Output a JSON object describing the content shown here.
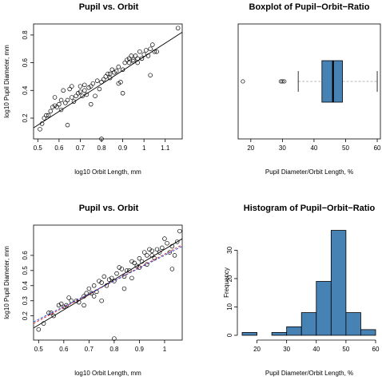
{
  "colors": {
    "box_fill": "#4682b4",
    "bar_fill": "#4682b4",
    "median": "#000000",
    "whisker": "#a0a0a0",
    "fit_red": "#d62728",
    "fit_blue": "#1f3fd6"
  },
  "chart_data": [
    {
      "type": "scatter",
      "title": "Pupil vs. Orbit",
      "xlabel": "log10 Orbit Length, mm",
      "ylabel": "log10 Pupil Diameter, mm",
      "xlim": [
        0.48,
        1.18
      ],
      "ylim": [
        0.05,
        0.88
      ],
      "xticks": [
        0.5,
        0.6,
        0.7,
        0.8,
        0.9,
        1.0,
        1.1
      ],
      "yticks": [
        0.2,
        0.4,
        0.6,
        0.8
      ],
      "fit_lines": [
        {
          "style": "solid",
          "color": "#000000",
          "x": [
            0.48,
            1.18
          ],
          "y": [
            0.13,
            0.82
          ]
        }
      ],
      "x": [
        0.51,
        0.52,
        0.53,
        0.54,
        0.55,
        0.56,
        0.57,
        0.58,
        0.59,
        0.6,
        0.61,
        0.62,
        0.63,
        0.64,
        0.65,
        0.66,
        0.67,
        0.68,
        0.69,
        0.7,
        0.71,
        0.72,
        0.73,
        0.74,
        0.75,
        0.76,
        0.77,
        0.78,
        0.79,
        0.8,
        0.81,
        0.82,
        0.83,
        0.84,
        0.85,
        0.86,
        0.87,
        0.88,
        0.89,
        0.9,
        0.91,
        0.92,
        0.93,
        0.94,
        0.95,
        0.96,
        0.97,
        0.98,
        0.99,
        1.0,
        1.01,
        1.02,
        1.03,
        1.04,
        1.05,
        1.06,
        0.8,
        0.64,
        0.61,
        0.75,
        0.88,
        0.95,
        1.16,
        0.58,
        0.7,
        0.72,
        0.84,
        0.9,
        0.93,
        0.66,
        0.97,
        1.03
      ],
      "y": [
        0.12,
        0.16,
        0.2,
        0.22,
        0.22,
        0.25,
        0.28,
        0.29,
        0.28,
        0.3,
        0.33,
        0.4,
        0.31,
        0.33,
        0.41,
        0.35,
        0.32,
        0.36,
        0.38,
        0.43,
        0.36,
        0.4,
        0.37,
        0.42,
        0.43,
        0.45,
        0.36,
        0.47,
        0.41,
        0.46,
        0.48,
        0.5,
        0.52,
        0.49,
        0.55,
        0.53,
        0.54,
        0.57,
        0.46,
        0.55,
        0.6,
        0.62,
        0.63,
        0.65,
        0.61,
        0.65,
        0.6,
        0.68,
        0.63,
        0.66,
        0.69,
        0.65,
        0.7,
        0.73,
        0.68,
        0.68,
        0.05,
        0.15,
        0.26,
        0.3,
        0.45,
        0.62,
        0.85,
        0.35,
        0.39,
        0.44,
        0.52,
        0.38,
        0.6,
        0.43,
        0.63,
        0.51
      ]
    },
    {
      "type": "boxplot",
      "title": "Boxplot of Pupil−Orbit−Ratio",
      "xlabel": "Pupil Diameter/Orbit Length, %",
      "xlim": [
        16,
        61
      ],
      "xticks": [
        20,
        30,
        40,
        50,
        60
      ],
      "q1": 42.5,
      "median": 46,
      "q3": 49,
      "whisker_low": 35,
      "whisker_high": 60,
      "outliers": [
        17.5,
        29.5,
        30.0,
        30.6
      ]
    },
    {
      "type": "scatter",
      "title": "Pupil vs. Orbit",
      "xlabel": "log10 Orbit Length, mm",
      "ylabel": "log10 Pupil Diameter, mm",
      "xlim": [
        0.48,
        1.07
      ],
      "ylim": [
        0.04,
        0.8
      ],
      "xticks": [
        0.5,
        0.6,
        0.7,
        0.8,
        0.9,
        1.0
      ],
      "yticks": [
        0.2,
        0.3,
        0.4,
        0.5,
        0.6
      ],
      "fit_lines": [
        {
          "style": "solid",
          "color": "#000000",
          "x": [
            0.48,
            1.07
          ],
          "y": [
            0.12,
            0.71
          ]
        },
        {
          "style": "dashed",
          "color": "#d62728",
          "x": [
            0.48,
            1.07
          ],
          "y": [
            0.15,
            0.67
          ]
        },
        {
          "style": "dashed",
          "color": "#1f3fd6",
          "x": [
            0.48,
            1.07
          ],
          "y": [
            0.16,
            0.66
          ]
        }
      ],
      "x": [
        0.5,
        0.52,
        0.54,
        0.55,
        0.56,
        0.58,
        0.59,
        0.6,
        0.62,
        0.63,
        0.65,
        0.66,
        0.68,
        0.69,
        0.7,
        0.71,
        0.72,
        0.73,
        0.74,
        0.75,
        0.76,
        0.77,
        0.78,
        0.79,
        0.8,
        0.81,
        0.82,
        0.83,
        0.84,
        0.85,
        0.86,
        0.87,
        0.88,
        0.89,
        0.9,
        0.91,
        0.92,
        0.93,
        0.94,
        0.95,
        0.96,
        0.97,
        0.98,
        0.99,
        1.0,
        1.01,
        1.02,
        1.03,
        1.04,
        1.05,
        1.06,
        0.8,
        0.61,
        0.75,
        0.87,
        0.93,
        0.95,
        0.68,
        0.72,
        0.84,
        0.9,
        1.03
      ],
      "y": [
        0.11,
        0.15,
        0.22,
        0.22,
        0.2,
        0.27,
        0.28,
        0.26,
        0.32,
        0.3,
        0.3,
        0.29,
        0.33,
        0.35,
        0.38,
        0.35,
        0.4,
        0.36,
        0.43,
        0.42,
        0.46,
        0.4,
        0.44,
        0.45,
        0.43,
        0.48,
        0.52,
        0.51,
        0.46,
        0.5,
        0.5,
        0.56,
        0.55,
        0.53,
        0.58,
        0.56,
        0.62,
        0.6,
        0.64,
        0.63,
        0.58,
        0.64,
        0.62,
        0.65,
        0.71,
        0.68,
        0.62,
        0.66,
        0.6,
        0.69,
        0.76,
        0.05,
        0.27,
        0.3,
        0.45,
        0.54,
        0.6,
        0.27,
        0.33,
        0.38,
        0.52,
        0.51
      ]
    },
    {
      "type": "bar",
      "title": "Histogram of Pupil−Orbit−Ratio",
      "xlabel": "Pupil Diameter/Orbit Length, %",
      "ylabel": "Frequency",
      "xlim": [
        15,
        60
      ],
      "ylim": [
        0,
        38
      ],
      "xticks": [
        20,
        30,
        40,
        50,
        60
      ],
      "yticks": [
        0,
        10,
        20,
        30
      ],
      "bins": [
        [
          15,
          20
        ],
        [
          20,
          25
        ],
        [
          25,
          30
        ],
        [
          30,
          35
        ],
        [
          35,
          40
        ],
        [
          40,
          45
        ],
        [
          45,
          50
        ],
        [
          50,
          55
        ],
        [
          55,
          60
        ]
      ],
      "values": [
        1,
        0,
        1,
        3,
        8,
        19,
        37,
        8,
        2
      ]
    }
  ]
}
